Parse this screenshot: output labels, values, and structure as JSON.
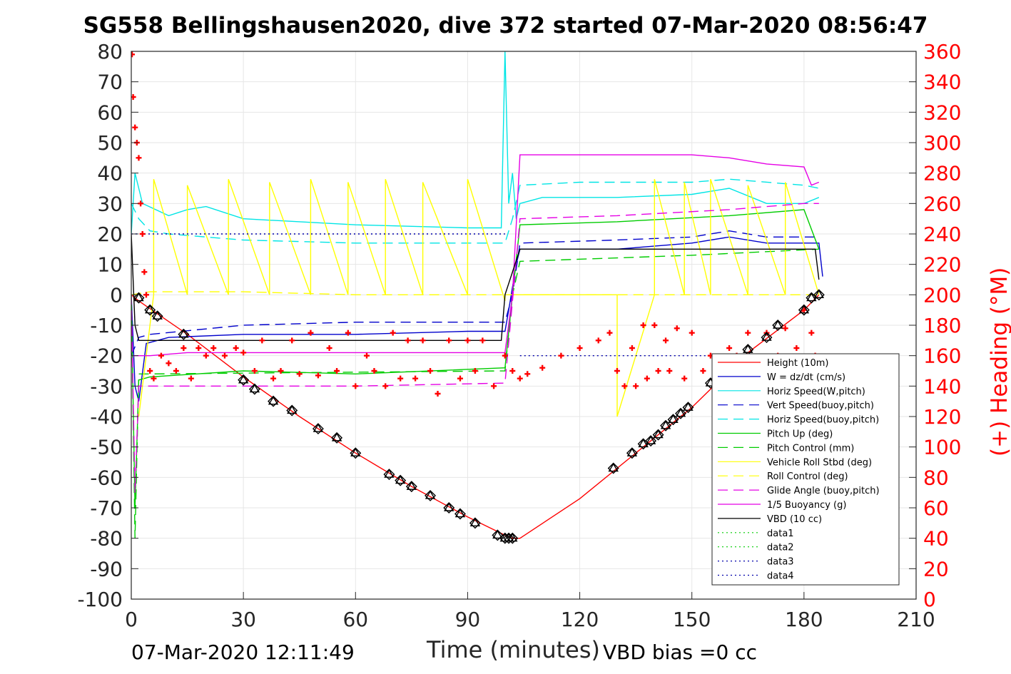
{
  "title": "SG558 Bellingshausen2020, dive 372 started 07-Mar-2020 08:56:47",
  "footer_left": "07-Mar-2020 12:11:49",
  "footer_right": "VBD bias =0 cc",
  "chart_data": {
    "type": "line",
    "xlabel": "Time (minutes)",
    "ylabel": "",
    "y2label": "(+) Heading (°M)",
    "xlim": [
      0,
      210
    ],
    "ylim": [
      -100,
      80
    ],
    "y2lim": [
      0,
      360
    ],
    "xticks": [
      0,
      30,
      60,
      90,
      120,
      150,
      180,
      210
    ],
    "yticks": [
      -100,
      -90,
      -80,
      -70,
      -60,
      -50,
      -40,
      -30,
      -20,
      -10,
      0,
      10,
      20,
      30,
      40,
      50,
      60,
      70,
      80
    ],
    "y2ticks": [
      0,
      20,
      40,
      60,
      80,
      100,
      120,
      140,
      160,
      180,
      200,
      220,
      240,
      260,
      280,
      300,
      320,
      340,
      360
    ],
    "grid": true,
    "legend_position": "bottom-right",
    "series": [
      {
        "name": "Height (10m)",
        "color": "#ff0000",
        "style": "solid",
        "x": [
          0,
          2,
          15,
          30,
          45,
          60,
          75,
          90,
          100,
          102,
          104,
          120,
          135,
          150,
          165,
          180,
          184
        ],
        "y": [
          0,
          -2,
          -13,
          -27,
          -40,
          -52,
          -63,
          -73,
          -79,
          -80,
          -80,
          -67,
          -52,
          -37,
          -19,
          -5,
          0
        ]
      },
      {
        "name": "W = dz/dt (cm/s)",
        "color": "#0000cc",
        "style": "solid",
        "x": [
          0,
          1,
          2,
          4,
          10,
          30,
          60,
          90,
          100,
          101,
          103,
          104,
          110,
          130,
          150,
          160,
          170,
          180,
          184,
          185
        ],
        "y": [
          0,
          -30,
          -35,
          -16,
          -14,
          -13,
          -13,
          -12,
          -12,
          -5,
          10,
          15,
          15,
          15,
          17,
          19,
          17,
          17,
          17,
          6
        ]
      },
      {
        "name": "Horiz Speed(W,pitch)",
        "color": "#00e5e5",
        "style": "solid",
        "x": [
          0,
          1,
          2,
          3,
          10,
          15,
          20,
          30,
          60,
          90,
          99,
          100,
          101,
          102,
          103,
          104,
          110,
          130,
          150,
          160,
          170,
          180,
          184
        ],
        "y": [
          20,
          40,
          35,
          30,
          26,
          28,
          29,
          25,
          23,
          22,
          22,
          80,
          30,
          40,
          25,
          30,
          32,
          32,
          33,
          35,
          30,
          30,
          32
        ]
      },
      {
        "name": "Vert Speed(buoy,pitch)",
        "color": "#0000cc",
        "style": "dashed",
        "x": [
          0,
          2,
          5,
          30,
          60,
          100,
          102,
          104,
          130,
          150,
          160,
          170,
          180,
          184
        ],
        "y": [
          -20,
          -14,
          -13,
          -10,
          -9,
          -9,
          0,
          17,
          18,
          19,
          21,
          19,
          19,
          19
        ]
      },
      {
        "name": "Horiz Speed(buoy,pitch)",
        "color": "#00e5e5",
        "style": "dashed",
        "x": [
          0,
          2,
          5,
          10,
          20,
          30,
          60,
          100,
          102,
          104,
          120,
          150,
          160,
          180,
          184
        ],
        "y": [
          30,
          25,
          21,
          20,
          19,
          18,
          17,
          17,
          25,
          36,
          37,
          37,
          38,
          36,
          35
        ]
      },
      {
        "name": "Pitch Up (deg)",
        "color": "#00cc00",
        "style": "solid",
        "x": [
          0,
          1,
          2,
          5,
          30,
          60,
          100,
          102,
          104,
          130,
          160,
          180,
          184
        ],
        "y": [
          0,
          -70,
          -28,
          -27,
          -25,
          -26,
          -24,
          0,
          23,
          24,
          26,
          28,
          15
        ]
      },
      {
        "name": "Pitch Control (mm)",
        "color": "#00cc00",
        "style": "dashed",
        "x": [
          0,
          1,
          2,
          5,
          100,
          102,
          104,
          150,
          184
        ],
        "y": [
          0,
          -80,
          -26,
          -26,
          -25,
          0,
          11,
          13,
          15
        ]
      },
      {
        "name": "Vehicle Roll Stbd (deg)",
        "color": "#ffff00",
        "style": "solid",
        "x": [
          2,
          6,
          6,
          15,
          15,
          26,
          26,
          37,
          37,
          48,
          48,
          58,
          58,
          68,
          68,
          78,
          78,
          90,
          90,
          100,
          100,
          130,
          130,
          140,
          140,
          148,
          148,
          155,
          155,
          165,
          165,
          175,
          175,
          184
        ],
        "y": [
          -40,
          0,
          38,
          0,
          36,
          0,
          38,
          0,
          37,
          0,
          38,
          0,
          37,
          0,
          38,
          0,
          37,
          0,
          38,
          -2,
          0,
          0,
          -40,
          0,
          38,
          0,
          37,
          0,
          38,
          0,
          36,
          0,
          37,
          0
        ]
      },
      {
        "name": "Roll Control (deg)",
        "color": "#ffff00",
        "style": "dashed",
        "x": [
          0,
          5,
          10,
          30,
          60,
          100,
          104,
          150,
          184
        ],
        "y": [
          0,
          1,
          1,
          1,
          0,
          0,
          0,
          0,
          0
        ]
      },
      {
        "name": "Glide Angle (buoy,pitch)",
        "color": "#e500e5",
        "style": "dashed",
        "x": [
          0,
          1,
          2,
          5,
          60,
          100,
          102,
          104,
          130,
          160,
          180,
          184
        ],
        "y": [
          0,
          -65,
          -30,
          -30,
          -30,
          -29,
          -2,
          25,
          26,
          28,
          30,
          30
        ]
      },
      {
        "name": "1/5 Buoyancy (g)",
        "color": "#e500e5",
        "style": "solid",
        "x": [
          0,
          2,
          5,
          15,
          30,
          100,
          102,
          104,
          130,
          150,
          160,
          170,
          180,
          182,
          184
        ],
        "y": [
          -20,
          -20,
          -20,
          -19,
          -19,
          -19,
          0,
          46,
          46,
          46,
          45,
          43,
          42,
          36,
          37
        ]
      },
      {
        "name": "VBD (10 cc)",
        "color": "#000000",
        "style": "solid",
        "x": [
          0,
          1,
          2,
          4,
          99,
          100,
          104,
          183,
          184
        ],
        "y": [
          20,
          -10,
          -15,
          -15,
          -15,
          0,
          15,
          15,
          5
        ]
      },
      {
        "name": "data1",
        "color": "#00cc00",
        "style": "dotted",
        "x": [],
        "y": []
      },
      {
        "name": "data2",
        "color": "#00cc00",
        "style": "dotted",
        "x": [],
        "y": []
      },
      {
        "name": "data3",
        "color": "#0000aa",
        "style": "dotted",
        "x": [
          0,
          100
        ],
        "y": [
          20,
          20
        ]
      },
      {
        "name": "data4",
        "color": "#0000aa",
        "style": "dotted",
        "x": [
          104,
          184
        ],
        "y": [
          -20,
          -20
        ]
      }
    ],
    "heading": {
      "name": "(+) Heading (°M)",
      "color": "#ff0000",
      "marker": "+",
      "axis": "right",
      "x": [
        0.2,
        0.5,
        1,
        1.5,
        2,
        2.5,
        3,
        3.5,
        4,
        5,
        6,
        8,
        10,
        12,
        14,
        16,
        18,
        20,
        22,
        25,
        28,
        30,
        33,
        35,
        38,
        40,
        43,
        45,
        48,
        50,
        53,
        55,
        58,
        60,
        63,
        65,
        68,
        70,
        72,
        74,
        76,
        78,
        80,
        82,
        85,
        88,
        90,
        92,
        94,
        97,
        100,
        102,
        104,
        106,
        110,
        115,
        120,
        125,
        128,
        130,
        132,
        134,
        135,
        137,
        138,
        140,
        141,
        143,
        144,
        146,
        148,
        150,
        153,
        155,
        158,
        160,
        162,
        165,
        168,
        170,
        173,
        175,
        178,
        180,
        181,
        182,
        183
      ],
      "y": [
        358,
        330,
        310,
        300,
        290,
        260,
        240,
        215,
        200,
        150,
        145,
        160,
        155,
        150,
        165,
        145,
        165,
        160,
        165,
        160,
        165,
        162,
        150,
        170,
        145,
        150,
        170,
        148,
        175,
        147,
        165,
        150,
        175,
        140,
        160,
        150,
        140,
        175,
        145,
        170,
        145,
        170,
        150,
        135,
        170,
        145,
        170,
        150,
        170,
        140,
        160,
        150,
        145,
        148,
        152,
        160,
        165,
        170,
        175,
        150,
        140,
        165,
        140,
        180,
        145,
        180,
        150,
        170,
        150,
        178,
        145,
        175,
        150,
        160,
        145,
        165,
        160,
        175,
        150,
        175,
        160,
        178,
        165,
        190,
        150,
        175,
        160
      ]
    },
    "depth_markers": {
      "marker": "diamond-triangle",
      "x": [
        2,
        5,
        7,
        14,
        30,
        33,
        38,
        43,
        50,
        55,
        60,
        69,
        72,
        75,
        80,
        85,
        88,
        92,
        98,
        100,
        101,
        102,
        129,
        134,
        137,
        139,
        141,
        143,
        145,
        147,
        149,
        155,
        160,
        165,
        170,
        173,
        180,
        182,
        184
      ],
      "y": [
        -1,
        -5,
        -7,
        -13,
        -28,
        -31,
        -35,
        -38,
        -44,
        -47,
        -52,
        -59,
        -61,
        -63,
        -66,
        -70,
        -72,
        -75,
        -79,
        -80,
        -80,
        -80,
        -57,
        -52,
        -49,
        -48,
        -46,
        -43,
        -41,
        -39,
        -37,
        -29,
        -24,
        -18,
        -14,
        -10,
        -5,
        -1,
        0
      ]
    }
  }
}
